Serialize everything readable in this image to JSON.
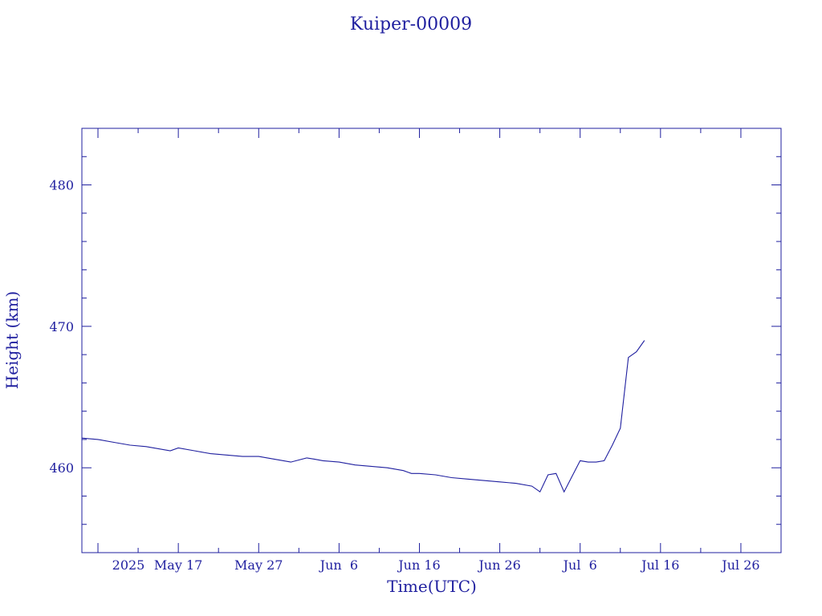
{
  "chart_data": {
    "type": "line",
    "title": "Kuiper-00009",
    "xlabel": "Time(UTC)",
    "ylabel": "Height (km)",
    "x_start_label": "2025",
    "xlim": [
      "2025-05-05",
      "2025-07-31"
    ],
    "ylim": [
      454,
      484
    ],
    "x_tick_labels": [
      {
        "date": "2025-05-17",
        "label": "May 17"
      },
      {
        "date": "2025-05-27",
        "label": "May 27"
      },
      {
        "date": "2025-06-06",
        "label": "Jun  6"
      },
      {
        "date": "2025-06-16",
        "label": "Jun 16"
      },
      {
        "date": "2025-06-26",
        "label": "Jun 26"
      },
      {
        "date": "2025-07-06",
        "label": "Jul  6"
      },
      {
        "date": "2025-07-16",
        "label": "Jul 16"
      },
      {
        "date": "2025-07-26",
        "label": "Jul 26"
      }
    ],
    "y_ticks": [
      460,
      470,
      480
    ],
    "color": "#1f1f9f",
    "grid": false,
    "series": [
      {
        "name": "",
        "x": [
          "2025-05-05",
          "2025-05-07",
          "2025-05-09",
          "2025-05-11",
          "2025-05-13",
          "2025-05-16",
          "2025-05-17",
          "2025-05-19",
          "2025-05-21",
          "2025-05-23",
          "2025-05-25",
          "2025-05-27",
          "2025-05-29",
          "2025-05-31",
          "2025-06-02",
          "2025-06-03",
          "2025-06-04",
          "2025-06-06",
          "2025-06-08",
          "2025-06-10",
          "2025-06-12",
          "2025-06-14",
          "2025-06-15",
          "2025-06-16",
          "2025-06-18",
          "2025-06-20",
          "2025-06-22",
          "2025-06-24",
          "2025-06-26",
          "2025-06-28",
          "2025-06-30",
          "2025-07-01",
          "2025-07-02",
          "2025-07-03",
          "2025-07-04",
          "2025-07-05",
          "2025-07-06",
          "2025-07-07",
          "2025-07-08",
          "2025-07-09",
          "2025-07-10",
          "2025-07-11",
          "2025-07-12",
          "2025-07-13",
          "2025-07-14"
        ],
        "values": [
          462.1,
          462.0,
          461.8,
          461.6,
          461.5,
          461.2,
          461.4,
          461.2,
          461.0,
          460.9,
          460.8,
          460.8,
          460.6,
          460.4,
          460.7,
          460.6,
          460.5,
          460.4,
          460.2,
          460.1,
          460.0,
          459.8,
          459.6,
          459.6,
          459.5,
          459.3,
          459.2,
          459.1,
          459.0,
          458.9,
          458.7,
          458.3,
          459.5,
          459.6,
          458.3,
          459.4,
          460.5,
          460.4,
          460.4,
          460.5,
          461.6,
          462.8,
          467.8,
          468.2,
          469.0
        ]
      }
    ]
  }
}
